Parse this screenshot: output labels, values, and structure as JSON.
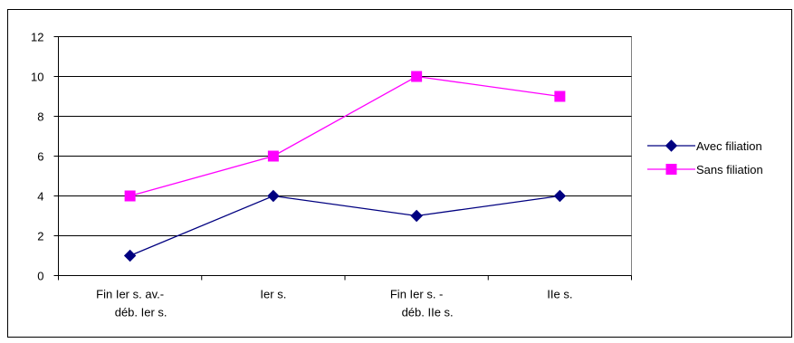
{
  "chart_data": {
    "type": "line",
    "categories": [
      [
        "Fin Ier s. av.-",
        "déb. Ier s."
      ],
      [
        "Ier s."
      ],
      [
        "Fin Ier s. -",
        "déb. IIe s."
      ],
      [
        "IIe s."
      ]
    ],
    "series": [
      {
        "name": "Avec filiation",
        "values": [
          1,
          4,
          3,
          4
        ],
        "color": "#000080",
        "marker": "diamond"
      },
      {
        "name": "Sans filiation",
        "values": [
          4,
          6,
          10,
          9
        ],
        "color": "#FF00FF",
        "marker": "square"
      }
    ],
    "ylim": [
      0,
      12
    ],
    "yticks": [
      "0",
      "2",
      "4",
      "6",
      "8",
      "10",
      "12"
    ],
    "grid": true,
    "legend_position": "right",
    "title": "",
    "xlabel": "",
    "ylabel": ""
  }
}
